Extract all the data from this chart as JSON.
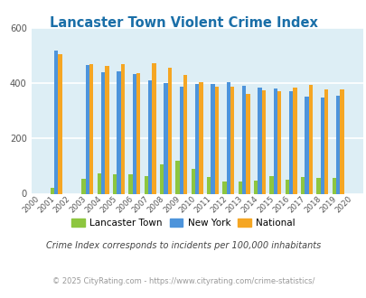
{
  "title": "Lancaster Town Violent Crime Index",
  "years": [
    "2000",
    "2001",
    "2002",
    "2003",
    "2004",
    "2005",
    "2006",
    "2007",
    "2008",
    "2009",
    "2010",
    "2011",
    "2012",
    "2013",
    "2014",
    "2015",
    "2016",
    "2017",
    "2018",
    "2019",
    "2020"
  ],
  "lancaster": [
    0,
    22,
    0,
    55,
    75,
    72,
    72,
    65,
    108,
    120,
    90,
    62,
    45,
    45,
    46,
    65,
    52,
    60,
    58,
    58,
    0
  ],
  "new_york": [
    0,
    520,
    0,
    468,
    440,
    445,
    435,
    412,
    400,
    388,
    398,
    398,
    405,
    393,
    385,
    382,
    373,
    352,
    350,
    355,
    0
  ],
  "national": [
    0,
    506,
    0,
    470,
    463,
    469,
    438,
    473,
    458,
    430,
    405,
    387,
    387,
    363,
    375,
    373,
    386,
    395,
    379,
    379,
    0
  ],
  "bar_width": 0.25,
  "colors": {
    "lancaster": "#8dc63f",
    "new_york": "#4d94db",
    "national": "#f5a623"
  },
  "ylim": [
    0,
    600
  ],
  "yticks": [
    0,
    200,
    400,
    600
  ],
  "bg_color": "#ddeef5",
  "grid_color": "#ffffff",
  "subtitle": "Crime Index corresponds to incidents per 100,000 inhabitants",
  "footer": "© 2025 CityRating.com - https://www.cityrating.com/crime-statistics/",
  "title_color": "#1a6fa8",
  "subtitle_color": "#444444",
  "footer_color": "#999999",
  "title_fontsize": 10.5,
  "subtitle_fontsize": 7.0,
  "footer_fontsize": 6.0,
  "legend_fontsize": 7.5,
  "tick_fontsize": 6.2
}
